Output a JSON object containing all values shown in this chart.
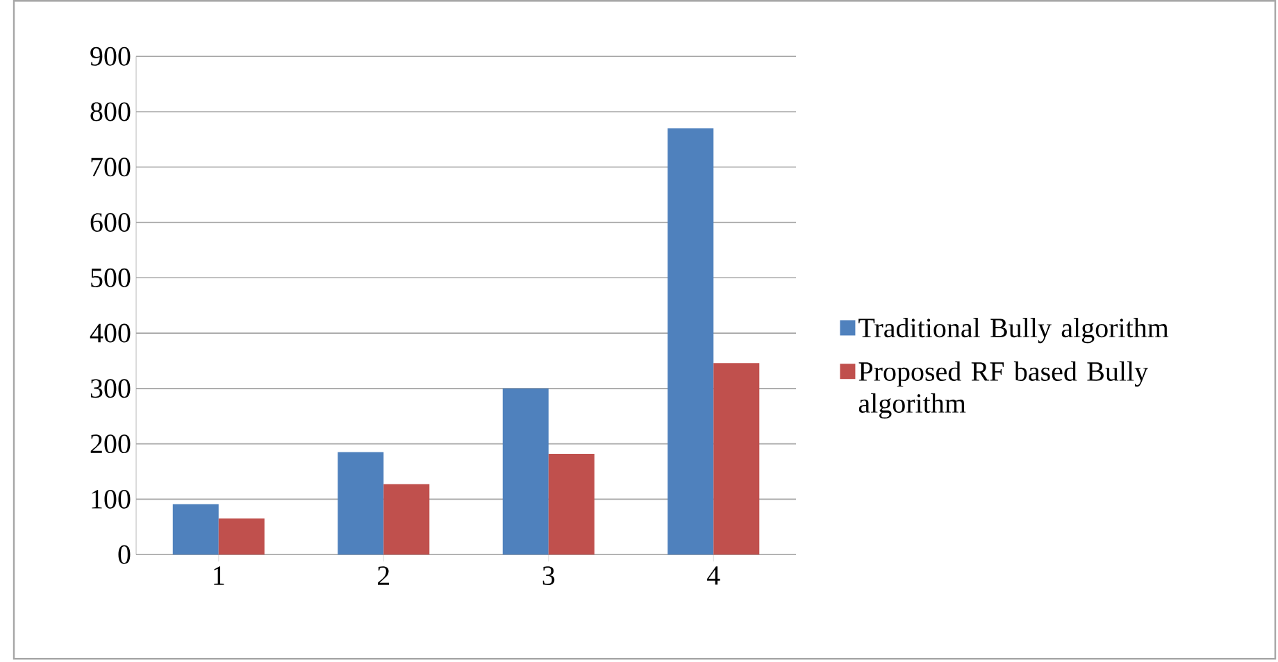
{
  "chart_data": {
    "type": "bar",
    "categories": [
      "1",
      "2",
      "3",
      "4"
    ],
    "series": [
      {
        "name": "Traditional Bully algorithm",
        "color": "#4f81bd",
        "values": [
          91,
          185,
          300,
          770
        ]
      },
      {
        "name": "Proposed RF based Bully algorithm",
        "color": "#c0504d",
        "values": [
          65,
          127,
          182,
          346
        ]
      }
    ],
    "ylim": [
      0,
      900
    ],
    "yticks": [
      0,
      100,
      200,
      300,
      400,
      500,
      600,
      700,
      800,
      900
    ],
    "grid": "y",
    "legend": "right"
  }
}
